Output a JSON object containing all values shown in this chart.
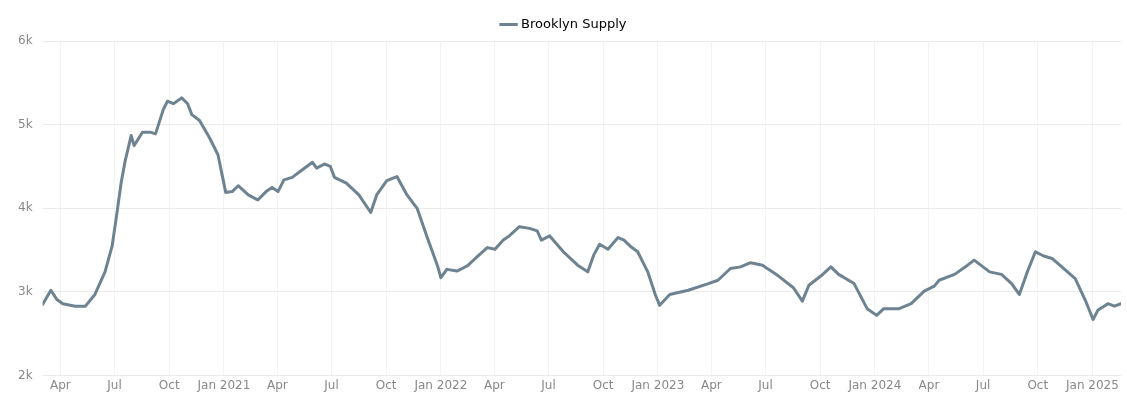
{
  "chart_data": {
    "type": "line",
    "legend": "top",
    "grid": true,
    "marker": "none",
    "line_style": "solid",
    "xlim": [
      "2020-03-02",
      "2025-02-18"
    ],
    "xticks": [
      {
        "value": "2020-04",
        "label": "Apr"
      },
      {
        "value": "2020-07",
        "label": "Jul"
      },
      {
        "value": "2020-10",
        "label": "Oct"
      },
      {
        "value": "2021-01",
        "label": "Jan 2021"
      },
      {
        "value": "2021-04",
        "label": "Apr"
      },
      {
        "value": "2021-07",
        "label": "Jul"
      },
      {
        "value": "2021-10",
        "label": "Oct"
      },
      {
        "value": "2022-01",
        "label": "Jan 2022"
      },
      {
        "value": "2022-04",
        "label": "Apr"
      },
      {
        "value": "2022-07",
        "label": "Jul"
      },
      {
        "value": "2022-10",
        "label": "Oct"
      },
      {
        "value": "2023-01",
        "label": "Jan 2023"
      },
      {
        "value": "2023-04",
        "label": "Apr"
      },
      {
        "value": "2023-07",
        "label": "Jul"
      },
      {
        "value": "2023-10",
        "label": "Oct"
      },
      {
        "value": "2024-01",
        "label": "Jan 2024"
      },
      {
        "value": "2024-04",
        "label": "Apr"
      },
      {
        "value": "2024-07",
        "label": "Jul"
      },
      {
        "value": "2024-10",
        "label": "Oct"
      },
      {
        "value": "2025-01",
        "label": "Jan 2025"
      }
    ],
    "ylim": [
      2000,
      6000
    ],
    "yticks": [
      {
        "value": 2000,
        "label": "2k"
      },
      {
        "value": 3000,
        "label": "3k"
      },
      {
        "value": 4000,
        "label": "4k"
      },
      {
        "value": 5000,
        "label": "5k"
      },
      {
        "value": 6000,
        "label": "6k"
      }
    ],
    "x": [
      "2020-03-02",
      "2020-03-16",
      "2020-03-26",
      "2020-04-05",
      "2020-04-26",
      "2020-05-13",
      "2020-05-29",
      "2020-06-15",
      "2020-06-27",
      "2020-07-06",
      "2020-07-12",
      "2020-07-19",
      "2020-07-26",
      "2020-07-29",
      "2020-08-03",
      "2020-08-17",
      "2020-08-30",
      "2020-09-08",
      "2020-09-21",
      "2020-09-28",
      "2020-10-08",
      "2020-10-22",
      "2020-11-01",
      "2020-11-08",
      "2020-11-21",
      "2020-12-08",
      "2020-12-22",
      "2020-12-29",
      "2021-01-04",
      "2021-01-15",
      "2021-01-25",
      "2021-02-11",
      "2021-02-27",
      "2021-03-13",
      "2021-03-23",
      "2021-04-02",
      "2021-04-12",
      "2021-04-26",
      "2021-05-09",
      "2021-05-30",
      "2021-06-06",
      "2021-06-19",
      "2021-06-29",
      "2021-07-06",
      "2021-07-26",
      "2021-08-16",
      "2021-09-05",
      "2021-09-15",
      "2021-10-02",
      "2021-10-19",
      "2021-11-05",
      "2021-11-22",
      "2021-12-09",
      "2021-12-26",
      "2022-01-01",
      "2022-01-11",
      "2022-01-28",
      "2022-02-14",
      "2022-03-06",
      "2022-03-20",
      "2022-04-02",
      "2022-04-16",
      "2022-04-26",
      "2022-05-13",
      "2022-05-30",
      "2022-06-12",
      "2022-06-19",
      "2022-07-03",
      "2022-07-26",
      "2022-08-19",
      "2022-09-05",
      "2022-09-15",
      "2022-09-25",
      "2022-10-09",
      "2022-10-26",
      "2022-11-05",
      "2022-11-15",
      "2022-11-28",
      "2022-12-15",
      "2022-12-28",
      "2023-01-04",
      "2023-01-21",
      "2023-02-21",
      "2023-03-27",
      "2023-04-12",
      "2023-05-03",
      "2023-05-20",
      "2023-06-06",
      "2023-06-26",
      "2023-07-06",
      "2023-07-23",
      "2023-08-17",
      "2023-09-01",
      "2023-09-12",
      "2023-10-02",
      "2023-10-19",
      "2023-11-01",
      "2023-11-27",
      "2023-12-19",
      "2024-01-04",
      "2024-01-16",
      "2024-02-11",
      "2024-03-02",
      "2024-03-24",
      "2024-04-10",
      "2024-04-18",
      "2024-05-14",
      "2024-06-05",
      "2024-06-16",
      "2024-07-12",
      "2024-08-01",
      "2024-08-18",
      "2024-08-31",
      "2024-09-14",
      "2024-09-27",
      "2024-10-11",
      "2024-10-25",
      "2024-11-07",
      "2024-12-03",
      "2024-12-20",
      "2025-01-02",
      "2025-01-10",
      "2025-01-27",
      "2025-02-07",
      "2025-02-18"
    ],
    "series": [
      {
        "name": "Brooklyn Supply",
        "color": "#6e8391",
        "values": [
          2850,
          3020,
          2910,
          2860,
          2830,
          2830,
          2970,
          3240,
          3550,
          3990,
          4300,
          4570,
          4780,
          4870,
          4750,
          4910,
          4910,
          4890,
          5180,
          5280,
          5250,
          5320,
          5250,
          5120,
          5050,
          4840,
          4640,
          4400,
          4190,
          4200,
          4270,
          4160,
          4100,
          4200,
          4250,
          4200,
          4340,
          4370,
          4440,
          4550,
          4480,
          4530,
          4500,
          4370,
          4300,
          4160,
          3950,
          4160,
          4330,
          4380,
          4160,
          4000,
          3650,
          3320,
          3170,
          3270,
          3250,
          3310,
          3440,
          3530,
          3510,
          3620,
          3670,
          3780,
          3760,
          3730,
          3620,
          3670,
          3480,
          3320,
          3240,
          3440,
          3570,
          3510,
          3650,
          3620,
          3550,
          3480,
          3240,
          2960,
          2840,
          2970,
          3020,
          3100,
          3140,
          3280,
          3300,
          3350,
          3320,
          3270,
          3190,
          3050,
          2890,
          3080,
          3190,
          3300,
          3210,
          3100,
          2800,
          2720,
          2800,
          2800,
          2860,
          3010,
          3070,
          3140,
          3210,
          3320,
          3380,
          3240,
          3210,
          3100,
          2970,
          3250,
          3480,
          3430,
          3400,
          3320,
          3160,
          2900,
          2670,
          2780,
          2860,
          2830,
          2860
        ]
      }
    ]
  }
}
